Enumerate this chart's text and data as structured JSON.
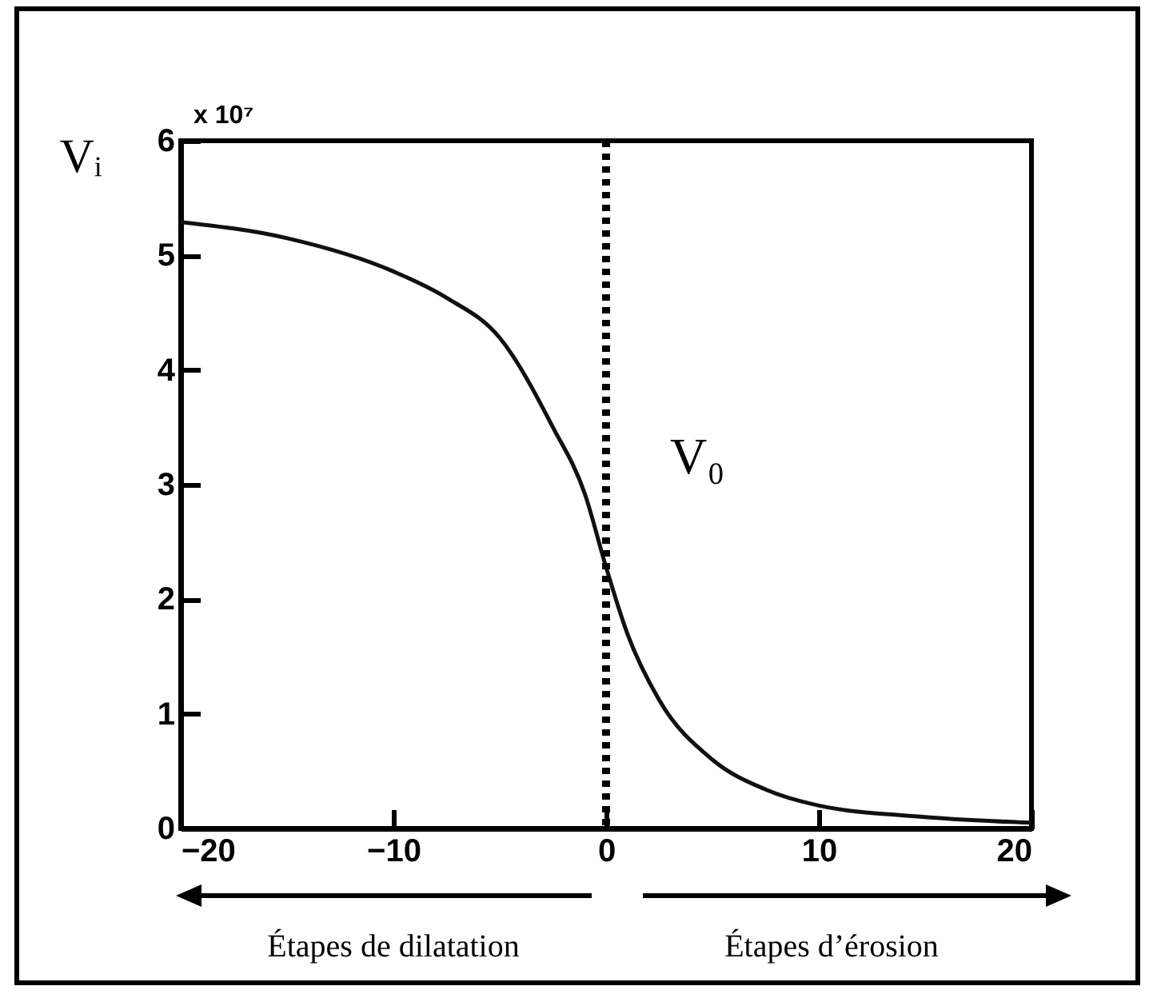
{
  "chart_data": {
    "type": "line",
    "ylabel": "Vᵢ",
    "x": [
      -20,
      -15,
      -10,
      -7.5,
      -5,
      -2.5,
      -1,
      0,
      1,
      2.5,
      5,
      7.5,
      10,
      15,
      20
    ],
    "series": [
      {
        "color": "#111111",
        "values": [
          5.29,
          5.15,
          4.86,
          4.63,
          4.28,
          3.5,
          2.92,
          2.28,
          1.7,
          1.12,
          0.6,
          0.34,
          0.2,
          0.1,
          0.05
        ]
      }
    ],
    "xlim": [
      -20,
      20
    ],
    "xticks": [
      -20,
      -10,
      0,
      10,
      20
    ],
    "ylim": [
      0,
      6
    ],
    "yticks": [
      0,
      1,
      2,
      3,
      4,
      5,
      6
    ],
    "grid": false,
    "line_style": "solid",
    "ref_lines": [
      {
        "axis": "x",
        "value": 0,
        "label": "V₀",
        "line_style": "dotted",
        "color": "#000000"
      }
    ],
    "annotations": [
      "x 10⁷",
      "Étapes de dilatation",
      "Étapes d’érosion"
    ]
  }
}
